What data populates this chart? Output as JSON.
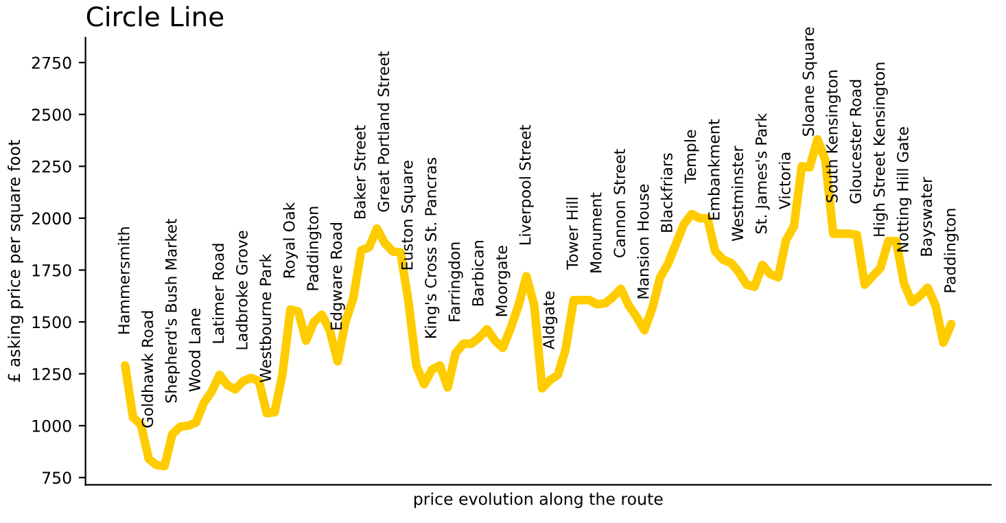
{
  "chart_data": {
    "type": "line",
    "title": "Circle Line",
    "xlabel": "price evolution along the route",
    "ylabel": "£ asking price per square foot",
    "categories": [
      "Hammersmith",
      null,
      null,
      "Goldhawk Road",
      null,
      null,
      "Shepherd's Bush Market",
      null,
      null,
      "Wood Lane",
      null,
      null,
      "Latimer Road",
      null,
      null,
      "Ladbroke Grove",
      null,
      null,
      "Westbourne Park",
      null,
      null,
      "Royal Oak",
      null,
      null,
      "Paddington",
      null,
      null,
      "Edgware Road",
      null,
      null,
      "Baker Street",
      null,
      null,
      "Great Portland Street",
      null,
      null,
      "Euston Square",
      null,
      null,
      "King's Cross St. Pancras",
      null,
      null,
      "Farringdon",
      null,
      null,
      "Barbican",
      null,
      null,
      "Moorgate",
      null,
      null,
      "Liverpool Street",
      null,
      null,
      "Aldgate",
      null,
      null,
      "Tower Hill",
      null,
      null,
      "Monument",
      null,
      null,
      "Cannon Street",
      null,
      null,
      "Mansion House",
      null,
      null,
      "Blackfriars",
      null,
      null,
      "Temple",
      null,
      null,
      "Embankment",
      null,
      null,
      "Westminster",
      null,
      null,
      "St. James's Park",
      null,
      null,
      "Victoria",
      null,
      null,
      "Sloane Square",
      null,
      null,
      "South Kensington",
      null,
      null,
      "Gloucester Road",
      null,
      null,
      "High Street Kensington",
      null,
      null,
      "Notting Hill Gate",
      null,
      null,
      "Bayswater",
      null,
      null,
      "Paddington"
    ],
    "series": [
      {
        "color": "#ffcc00",
        "values": [
          1290,
          1040,
          1005,
          840,
          810,
          805,
          960,
          995,
          1000,
          1015,
          1110,
          1165,
          1245,
          1195,
          1175,
          1215,
          1230,
          1215,
          1060,
          1065,
          1250,
          1560,
          1550,
          1410,
          1500,
          1535,
          1460,
          1310,
          1500,
          1615,
          1845,
          1860,
          1950,
          1880,
          1840,
          1835,
          1600,
          1290,
          1200,
          1270,
          1290,
          1185,
          1350,
          1395,
          1395,
          1425,
          1465,
          1410,
          1375,
          1470,
          1580,
          1720,
          1580,
          1180,
          1220,
          1245,
          1370,
          1605,
          1605,
          1605,
          1585,
          1590,
          1620,
          1660,
          1580,
          1525,
          1460,
          1565,
          1715,
          1780,
          1875,
          1970,
          2020,
          2000,
          2000,
          1840,
          1800,
          1785,
          1740,
          1680,
          1670,
          1775,
          1730,
          1715,
          1895,
          1960,
          2250,
          2245,
          2380,
          2280,
          1925,
          1925,
          1925,
          1920,
          1680,
          1720,
          1760,
          1890,
          1890,
          1685,
          1595,
          1625,
          1665,
          1580,
          1400,
          1490
        ]
      }
    ],
    "ylim": [
      715,
      2870
    ],
    "yticks": [
      750,
      1000,
      1250,
      1500,
      1750,
      2000,
      2250,
      2500,
      2750
    ],
    "grid": false,
    "legend": false,
    "marker": "none",
    "line_style": "solid"
  }
}
